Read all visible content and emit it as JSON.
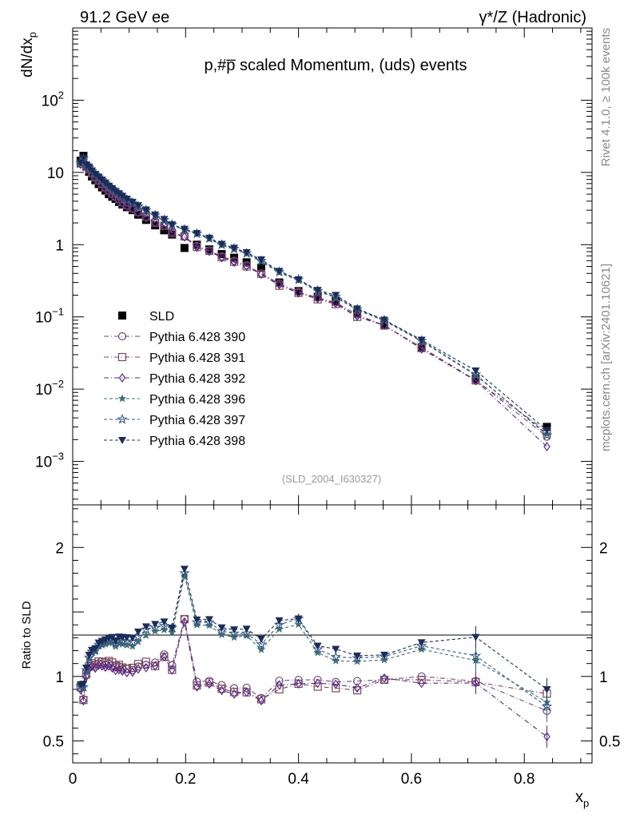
{
  "header": {
    "left": "91.2 GeV ee",
    "right": "γ*/Z (Hadronic)"
  },
  "side_labels": {
    "top": "Rivet 4.1.0, ≥ 100k events",
    "bottom": "mcplots.cern.ch [arXiv:2401.10621]"
  },
  "chart_data": {
    "type": "scatter",
    "title": "p,#p̅ scaled Momentum, (uds) events",
    "analysis_id": "(SLD_2004_I630327)",
    "xlabel": "x_p",
    "ylabel": "dN/dx_p",
    "ratio_ylabel": "Ratio to SLD",
    "xlim": [
      0,
      0.92
    ],
    "ylim": [
      0.00025,
      1000
    ],
    "ratio_ylim": [
      0.33,
      2.33
    ],
    "y_scale": "log",
    "x_ticks": [
      "0",
      "0.2",
      "0.4",
      "0.6",
      "0.8"
    ],
    "y_ticks": [
      "10^-3",
      "10^-2",
      "10^-1",
      "1",
      "10",
      "10^2"
    ],
    "ratio_ticks": [
      "0.5",
      "1",
      "2"
    ],
    "legend_position": "middle-left",
    "x": [
      0.014,
      0.019,
      0.024,
      0.029,
      0.034,
      0.04,
      0.046,
      0.052,
      0.058,
      0.064,
      0.07,
      0.076,
      0.082,
      0.088,
      0.096,
      0.106,
      0.116,
      0.13,
      0.146,
      0.162,
      0.176,
      0.198,
      0.22,
      0.242,
      0.264,
      0.286,
      0.308,
      0.334,
      0.366,
      0.4,
      0.434,
      0.466,
      0.504,
      0.552,
      0.618,
      0.714,
      0.84
    ],
    "series": [
      {
        "name": "SLD",
        "marker": "filled-square",
        "color": "#000000",
        "values": [
          14.5,
          17,
          12,
          10.2,
          8.8,
          7.8,
          6.9,
          6.2,
          5.6,
          5.0,
          4.6,
          4.3,
          3.9,
          3.6,
          3.3,
          3.0,
          2.6,
          2.2,
          1.85,
          1.58,
          1.38,
          0.9,
          1.0,
          0.86,
          0.74,
          0.66,
          0.57,
          0.48,
          0.3,
          0.228,
          0.19,
          0.165,
          0.112,
          0.078,
          0.038,
          0.0138,
          0.003
        ]
      },
      {
        "name": "Pythia 6.428 390",
        "marker": "open-circle",
        "color": "#6e4a78",
        "values": [
          13.2,
          14.0,
          12.1,
          10.9,
          9.6,
          8.4,
          7.6,
          6.8,
          6.1,
          5.5,
          5.0,
          4.6,
          4.2,
          3.8,
          3.5,
          3.15,
          2.8,
          2.4,
          2.05,
          1.85,
          1.5,
          1.3,
          0.96,
          0.83,
          0.69,
          0.6,
          0.52,
          0.4,
          0.29,
          0.222,
          0.185,
          0.158,
          0.108,
          0.076,
          0.038,
          0.0133,
          0.0022
        ]
      },
      {
        "name": "Pythia 6.428 391",
        "marker": "open-square",
        "color": "#7a4a5a",
        "values": [
          13.3,
          13.9,
          12.2,
          11.0,
          9.7,
          8.5,
          7.7,
          6.9,
          6.2,
          5.6,
          5.1,
          4.65,
          4.25,
          3.85,
          3.5,
          3.2,
          2.85,
          2.45,
          2.0,
          1.82,
          1.45,
          1.3,
          0.93,
          0.82,
          0.67,
          0.58,
          0.5,
          0.395,
          0.27,
          0.215,
          0.175,
          0.15,
          0.1,
          0.076,
          0.037,
          0.0132,
          0.0026
        ]
      },
      {
        "name": "Pythia 6.428 392",
        "marker": "open-diamond",
        "color": "#5a2a88",
        "values": [
          13.0,
          13.8,
          12.0,
          10.8,
          9.5,
          8.3,
          7.5,
          6.7,
          6.0,
          5.4,
          4.9,
          4.5,
          4.1,
          3.75,
          3.4,
          3.1,
          2.75,
          2.35,
          2.0,
          1.82,
          1.45,
          1.28,
          0.92,
          0.81,
          0.66,
          0.57,
          0.5,
          0.39,
          0.28,
          0.215,
          0.18,
          0.155,
          0.102,
          0.077,
          0.036,
          0.0131,
          0.0016
        ]
      },
      {
        "name": "Pythia 6.428 396",
        "marker": "filled-star",
        "color": "#3e6e78",
        "values": [
          13.5,
          15.5,
          12.5,
          11.6,
          10.4,
          9.3,
          8.5,
          7.7,
          7.0,
          6.3,
          5.8,
          5.3,
          4.9,
          4.5,
          4.1,
          3.7,
          3.3,
          2.9,
          2.5,
          2.15,
          1.85,
          1.6,
          1.4,
          1.2,
          0.98,
          0.86,
          0.75,
          0.58,
          0.41,
          0.32,
          0.225,
          0.185,
          0.125,
          0.088,
          0.046,
          0.0155,
          0.0024
        ]
      },
      {
        "name": "Pythia 6.428 397",
        "marker": "open-star",
        "color": "#3a5a80",
        "values": [
          13.4,
          15.6,
          12.6,
          11.7,
          10.5,
          9.4,
          8.6,
          7.8,
          7.1,
          6.4,
          5.9,
          5.4,
          5.0,
          4.6,
          4.2,
          3.8,
          3.4,
          3.0,
          2.55,
          2.2,
          1.9,
          1.62,
          1.42,
          1.22,
          1.0,
          0.88,
          0.76,
          0.6,
          0.42,
          0.33,
          0.23,
          0.19,
          0.128,
          0.09,
          0.047,
          0.016,
          0.0023
        ]
      },
      {
        "name": "Pythia 6.428 398",
        "marker": "filled-triangle-down",
        "color": "#1c2c5a",
        "values": [
          13.6,
          16.0,
          12.8,
          11.9,
          10.6,
          9.5,
          8.7,
          7.9,
          7.2,
          6.5,
          6.0,
          5.5,
          5.1,
          4.7,
          4.3,
          3.9,
          3.5,
          3.05,
          2.6,
          2.25,
          1.9,
          1.65,
          1.44,
          1.24,
          1.02,
          0.9,
          0.78,
          0.62,
          0.43,
          0.33,
          0.235,
          0.2,
          0.13,
          0.091,
          0.048,
          0.018,
          0.0027
        ]
      }
    ]
  }
}
